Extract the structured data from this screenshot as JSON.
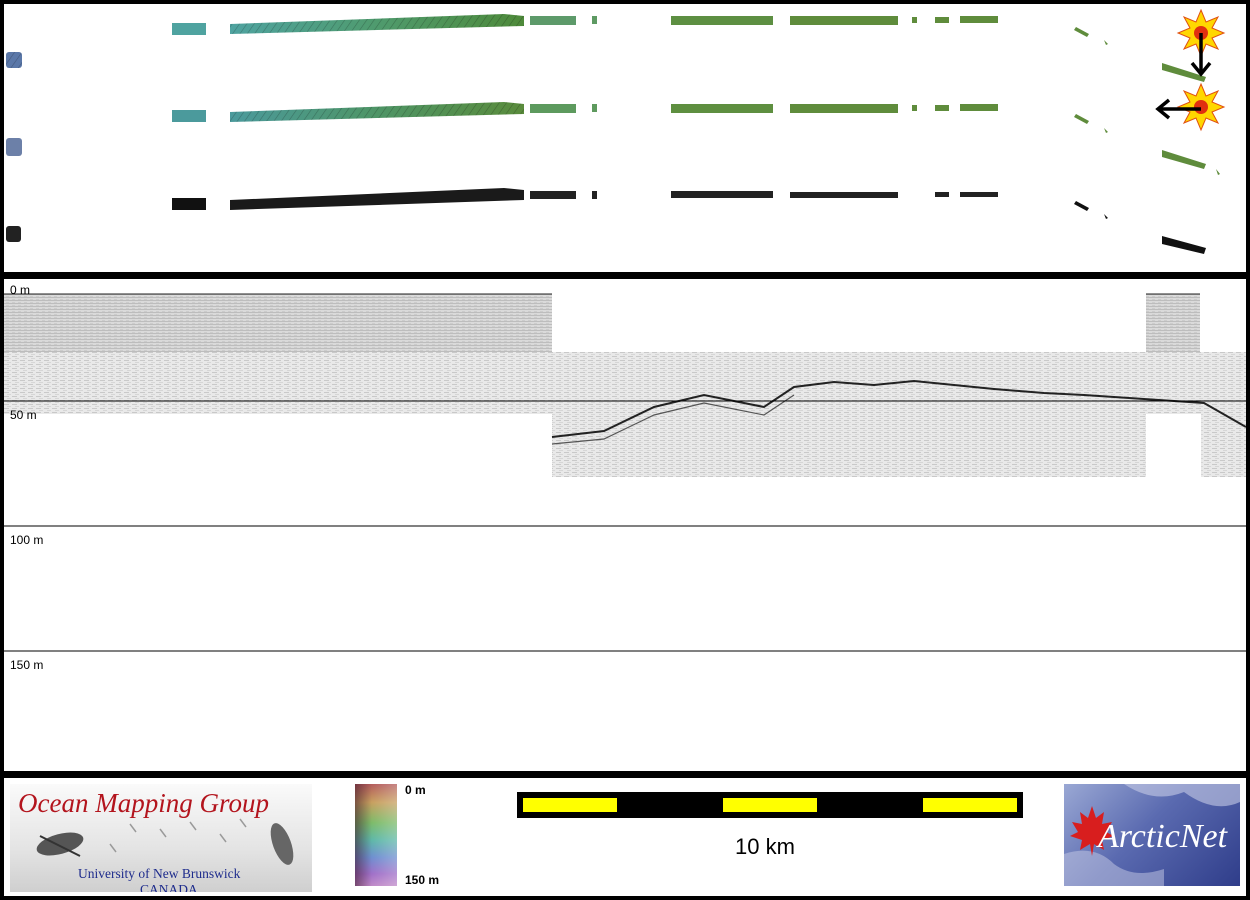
{
  "profile": {
    "depth_labels": [
      "0 m",
      "50 m",
      "100 m",
      "150 m"
    ]
  },
  "legend": {
    "top_label": "0 m",
    "bottom_label": "150 m"
  },
  "scale": {
    "label": "10 km"
  },
  "logos": {
    "omg_title": "Ocean Mapping Group",
    "omg_sub1": "University of New Brunswick",
    "omg_sub2": "CANADA",
    "arcticnet_text": "ArcticNet"
  },
  "colors": {
    "frame": "#000000",
    "scale_yellow": "#ffff00",
    "omg_red": "#b3141d",
    "omg_blue": "#1d2b8c",
    "ship_marker": "#ffd700"
  },
  "icons": {
    "ship_marker_1": "sunburst-marker-icon",
    "ship_marker_2": "sunburst-marker-icon",
    "heading_arrow_down": "arrow-down-icon",
    "heading_arrow_left": "arrow-left-icon",
    "maple_leaf": "maple-leaf-icon"
  }
}
